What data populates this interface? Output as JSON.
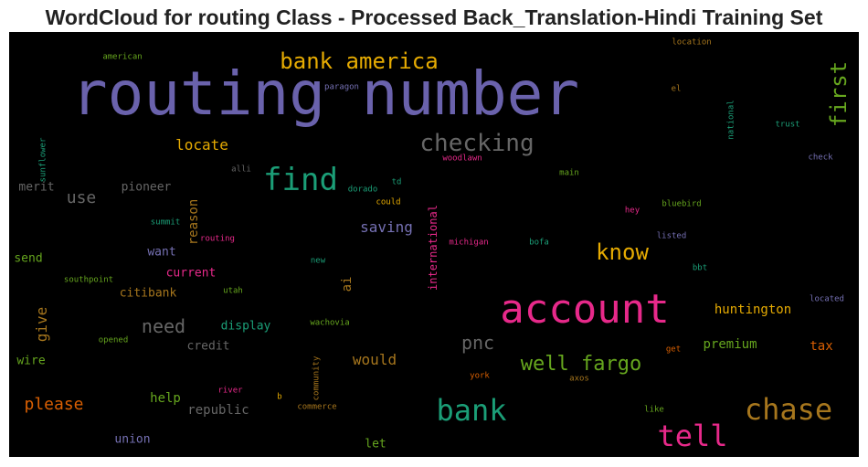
{
  "chart_data": {
    "type": "wordcloud",
    "title": "WordCloud for routing Class - Processed Back_Translation-Hindi Training Set",
    "background": "#000000",
    "words": [
      {
        "text": "routing number",
        "color": "#6a62ac",
        "vertical": false
      },
      {
        "text": "account",
        "color": "#e7298a",
        "vertical": false
      },
      {
        "text": "find",
        "color": "#1b9e77",
        "vertical": false
      },
      {
        "text": "chase",
        "color": "#a6761d",
        "vertical": false
      },
      {
        "text": "bank",
        "color": "#1b9e77",
        "vertical": false
      },
      {
        "text": "tell",
        "color": "#e7298a",
        "vertical": false
      },
      {
        "text": "checking",
        "color": "#666666",
        "vertical": false
      },
      {
        "text": "bank america",
        "color": "#e6ab02",
        "vertical": false
      },
      {
        "text": "know",
        "color": "#e6ab02",
        "vertical": false
      },
      {
        "text": "well fargo",
        "color": "#66a61e",
        "vertical": false
      },
      {
        "text": "first",
        "color": "#66a61e",
        "vertical": true
      },
      {
        "text": "pnc",
        "color": "#666666",
        "vertical": false
      },
      {
        "text": "please",
        "color": "#d95f02",
        "vertical": false
      },
      {
        "text": "need",
        "color": "#666666",
        "vertical": false
      },
      {
        "text": "use",
        "color": "#666666",
        "vertical": false
      },
      {
        "text": "locate",
        "color": "#e6ab02",
        "vertical": false
      },
      {
        "text": "saving",
        "color": "#7570b3",
        "vertical": false
      },
      {
        "text": "would",
        "color": "#a6761d",
        "vertical": false
      },
      {
        "text": "huntington",
        "color": "#e6ab02",
        "vertical": false
      },
      {
        "text": "give",
        "color": "#a6761d",
        "vertical": true
      },
      {
        "text": "reason",
        "color": "#a6761d",
        "vertical": true
      },
      {
        "text": "help",
        "color": "#66a61e",
        "vertical": false
      },
      {
        "text": "premium",
        "color": "#66a61e",
        "vertical": false
      },
      {
        "text": "tax",
        "color": "#d95f02",
        "vertical": false
      },
      {
        "text": "republic",
        "color": "#666666",
        "vertical": false
      },
      {
        "text": "citibank",
        "color": "#a6761d",
        "vertical": false
      },
      {
        "text": "current",
        "color": "#e7298a",
        "vertical": false
      },
      {
        "text": "display",
        "color": "#1b9e77",
        "vertical": false
      },
      {
        "text": "credit",
        "color": "#666666",
        "vertical": false
      },
      {
        "text": "want",
        "color": "#7570b3",
        "vertical": false
      },
      {
        "text": "pioneer",
        "color": "#666666",
        "vertical": false
      },
      {
        "text": "merit",
        "color": "#666666",
        "vertical": false
      },
      {
        "text": "international",
        "color": "#e7298a",
        "vertical": true
      },
      {
        "text": "ai",
        "color": "#a6761d",
        "vertical": true
      },
      {
        "text": "send",
        "color": "#66a61e",
        "vertical": false
      },
      {
        "text": "wire",
        "color": "#66a61e",
        "vertical": false
      },
      {
        "text": "union",
        "color": "#7570b3",
        "vertical": false
      },
      {
        "text": "let",
        "color": "#66a61e",
        "vertical": false
      },
      {
        "text": "sunflower",
        "color": "#1b9e77",
        "vertical": true
      },
      {
        "text": "american",
        "color": "#66a61e",
        "vertical": false
      },
      {
        "text": "paragon",
        "color": "#7570b3",
        "vertical": false
      },
      {
        "text": "location",
        "color": "#a6761d",
        "vertical": false
      },
      {
        "text": "el",
        "color": "#a6761d",
        "vertical": false
      },
      {
        "text": "national",
        "color": "#1b9e77",
        "vertical": true
      },
      {
        "text": "trust",
        "color": "#1b9e77",
        "vertical": false
      },
      {
        "text": "check",
        "color": "#7570b3",
        "vertical": false
      },
      {
        "text": "alli",
        "color": "#666666",
        "vertical": false
      },
      {
        "text": "woodlawn",
        "color": "#e7298a",
        "vertical": false
      },
      {
        "text": "main",
        "color": "#66a61e",
        "vertical": false
      },
      {
        "text": "td",
        "color": "#1b9e77",
        "vertical": false
      },
      {
        "text": "dorado",
        "color": "#1b9e77",
        "vertical": false
      },
      {
        "text": "could",
        "color": "#e6ab02",
        "vertical": false
      },
      {
        "text": "bluebird",
        "color": "#66a61e",
        "vertical": false
      },
      {
        "text": "hey",
        "color": "#e7298a",
        "vertical": false
      },
      {
        "text": "summit",
        "color": "#1b9e77",
        "vertical": false
      },
      {
        "text": "routing",
        "color": "#e7298a",
        "vertical": false
      },
      {
        "text": "michigan",
        "color": "#e7298a",
        "vertical": false
      },
      {
        "text": "bofa",
        "color": "#1b9e77",
        "vertical": false
      },
      {
        "text": "listed",
        "color": "#7570b3",
        "vertical": false
      },
      {
        "text": "new",
        "color": "#1b9e77",
        "vertical": false
      },
      {
        "text": "bbt",
        "color": "#1b9e77",
        "vertical": false
      },
      {
        "text": "southpoint",
        "color": "#66a61e",
        "vertical": false
      },
      {
        "text": "utah",
        "color": "#66a61e",
        "vertical": false
      },
      {
        "text": "located",
        "color": "#7570b3",
        "vertical": false
      },
      {
        "text": "wachovia",
        "color": "#66a61e",
        "vertical": false
      },
      {
        "text": "opened",
        "color": "#66a61e",
        "vertical": false
      },
      {
        "text": "get",
        "color": "#d95f02",
        "vertical": false
      },
      {
        "text": "axos",
        "color": "#a6761d",
        "vertical": false
      },
      {
        "text": "york",
        "color": "#d95f02",
        "vertical": false
      },
      {
        "text": "community",
        "color": "#a6761d",
        "vertical": true
      },
      {
        "text": "river",
        "color": "#e7298a",
        "vertical": false
      },
      {
        "text": "b",
        "color": "#e6ab02",
        "vertical": false
      },
      {
        "text": "commerce",
        "color": "#a6761d",
        "vertical": false
      },
      {
        "text": "like",
        "color": "#66a61e",
        "vertical": false
      }
    ]
  }
}
